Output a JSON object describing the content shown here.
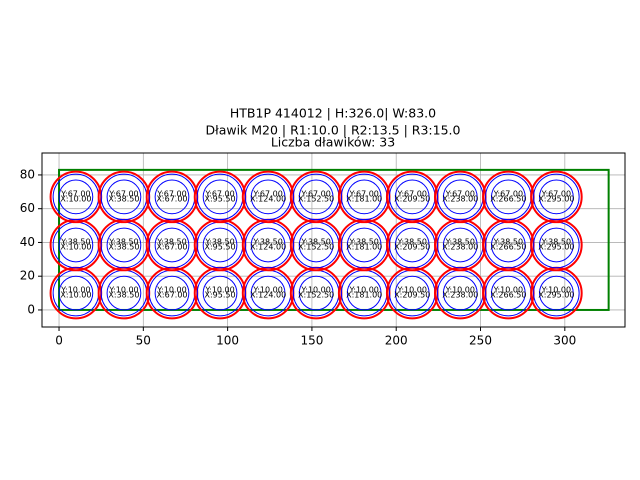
{
  "chart_data": {
    "type": "layout",
    "title_lines": [
      "HTB1P 414012 | H:326.0| W:83.0",
      "Dławik M20 | R1:10.0 | R2:13.5 | R3:15.0",
      "Liczba dławików: 33"
    ],
    "xlim": [
      -10.1,
      335.7
    ],
    "ylim": [
      -10.1,
      93
    ],
    "xticks": [
      0,
      50,
      100,
      150,
      200,
      250,
      300
    ],
    "yticks": [
      0,
      20,
      40,
      60,
      80
    ],
    "grid": true,
    "plate": {
      "width": 326,
      "height": 83,
      "color": "#008000"
    },
    "radii": [
      {
        "r": 15,
        "color": "#ff0000"
      },
      {
        "r": 13.5,
        "color": "#0000ff"
      },
      {
        "r": 10,
        "color": "#0000ff"
      }
    ],
    "points": [
      {
        "x": 10,
        "y": 10,
        "x_label": "X:10.00",
        "y_label": "Y:10.00"
      },
      {
        "x": 38.5,
        "y": 10,
        "x_label": "X:38.50",
        "y_label": "Y:10.00"
      },
      {
        "x": 67,
        "y": 10,
        "x_label": "X:67.00",
        "y_label": "Y:10.00"
      },
      {
        "x": 95.5,
        "y": 10,
        "x_label": "X:95.50",
        "y_label": "Y:10.00"
      },
      {
        "x": 124,
        "y": 10,
        "x_label": "X:124.00",
        "y_label": "Y:10.00"
      },
      {
        "x": 152.5,
        "y": 10,
        "x_label": "X:152.50",
        "y_label": "Y:10.00"
      },
      {
        "x": 181,
        "y": 10,
        "x_label": "X:181.00",
        "y_label": "Y:10.00"
      },
      {
        "x": 209.5,
        "y": 10,
        "x_label": "X:209.50",
        "y_label": "Y:10.00"
      },
      {
        "x": 238,
        "y": 10,
        "x_label": "X:238.00",
        "y_label": "Y:10.00"
      },
      {
        "x": 266.5,
        "y": 10,
        "x_label": "X:266.50",
        "y_label": "Y:10.00"
      },
      {
        "x": 295,
        "y": 10,
        "x_label": "X:295.00",
        "y_label": "Y:10.00"
      },
      {
        "x": 10,
        "y": 38.5,
        "x_label": "X:10.00",
        "y_label": "Y:38.50"
      },
      {
        "x": 38.5,
        "y": 38.5,
        "x_label": "X:38.50",
        "y_label": "Y:38.50"
      },
      {
        "x": 67,
        "y": 38.5,
        "x_label": "X:67.00",
        "y_label": "Y:38.50"
      },
      {
        "x": 95.5,
        "y": 38.5,
        "x_label": "X:95.50",
        "y_label": "Y:38.50"
      },
      {
        "x": 124,
        "y": 38.5,
        "x_label": "X:124.00",
        "y_label": "Y:38.50"
      },
      {
        "x": 152.5,
        "y": 38.5,
        "x_label": "X:152.50",
        "y_label": "Y:38.50"
      },
      {
        "x": 181,
        "y": 38.5,
        "x_label": "X:181.00",
        "y_label": "Y:38.50"
      },
      {
        "x": 209.5,
        "y": 38.5,
        "x_label": "X:209.50",
        "y_label": "Y:38.50"
      },
      {
        "x": 238,
        "y": 38.5,
        "x_label": "X:238.00",
        "y_label": "Y:38.50"
      },
      {
        "x": 266.5,
        "y": 38.5,
        "x_label": "X:266.50",
        "y_label": "Y:38.50"
      },
      {
        "x": 295,
        "y": 38.5,
        "x_label": "X:295.00",
        "y_label": "Y:38.50"
      },
      {
        "x": 10,
        "y": 67,
        "x_label": "X:10.00",
        "y_label": "Y:67.00"
      },
      {
        "x": 38.5,
        "y": 67,
        "x_label": "X:38.50",
        "y_label": "Y:67.00"
      },
      {
        "x": 67,
        "y": 67,
        "x_label": "X:67.00",
        "y_label": "Y:67.00"
      },
      {
        "x": 95.5,
        "y": 67,
        "x_label": "X:95.50",
        "y_label": "Y:67.00"
      },
      {
        "x": 124,
        "y": 67,
        "x_label": "X:124.00",
        "y_label": "Y:67.00"
      },
      {
        "x": 152.5,
        "y": 67,
        "x_label": "X:152.50",
        "y_label": "Y:67.00"
      },
      {
        "x": 181,
        "y": 67,
        "x_label": "X:181.00",
        "y_label": "Y:67.00"
      },
      {
        "x": 209.5,
        "y": 67,
        "x_label": "X:209.50",
        "y_label": "Y:67.00"
      },
      {
        "x": 238,
        "y": 67,
        "x_label": "X:238.00",
        "y_label": "Y:67.00"
      },
      {
        "x": 266.5,
        "y": 67,
        "x_label": "X:266.50",
        "y_label": "Y:67.00"
      },
      {
        "x": 295,
        "y": 67,
        "x_label": "X:295.00",
        "y_label": "Y:67.00"
      }
    ]
  }
}
